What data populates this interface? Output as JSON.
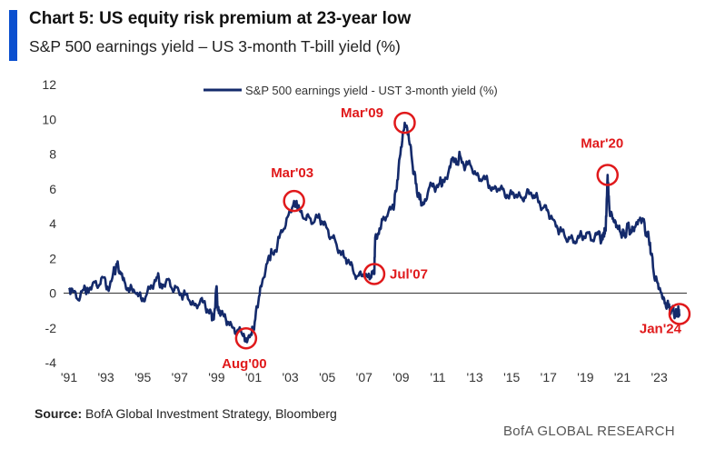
{
  "header": {
    "title": "Chart 5: US equity risk premium at 23-year low",
    "subtitle": "S&P 500 earnings yield – US 3-month T-bill yield (%)"
  },
  "footer": {
    "source_label": "Source:",
    "source_text": " BofA Global Investment Strategy, Bloomberg",
    "brand": "BofA GLOBAL RESEARCH"
  },
  "colors": {
    "line": "#142a6b",
    "annotation": "#e0191b",
    "accent": "#0a4fcf"
  },
  "chart_data": {
    "type": "line",
    "title": "",
    "xlabel": "",
    "ylabel": "",
    "x_ticks": [
      "'91",
      "'93",
      "'95",
      "'97",
      "'99",
      "'01",
      "'03",
      "'05",
      "'07",
      "'09",
      "'11",
      "'13",
      "'15",
      "'17",
      "'19",
      "'21",
      "'23"
    ],
    "x_tick_values": [
      1991,
      1993,
      1995,
      1997,
      1999,
      2001,
      2003,
      2005,
      2007,
      2009,
      2011,
      2013,
      2015,
      2017,
      2019,
      2021,
      2023
    ],
    "xlim": [
      1991,
      2024.3
    ],
    "ylim": [
      -4,
      12
    ],
    "y_ticks": [
      -4,
      -2,
      0,
      2,
      4,
      6,
      8,
      10,
      12
    ],
    "grid": false,
    "legend_position": "top-center",
    "series": [
      {
        "name": "S&P 500 earnings yield - UST 3-month yield (%)",
        "points": [
          [
            1991.0,
            0.3
          ],
          [
            1991.2,
            0.1
          ],
          [
            1991.5,
            -0.4
          ],
          [
            1991.8,
            0.2
          ],
          [
            1992.0,
            0.3
          ],
          [
            1992.3,
            0.6
          ],
          [
            1992.6,
            0.4
          ],
          [
            1992.9,
            0.9
          ],
          [
            1993.1,
            0.3
          ],
          [
            1993.4,
            1.2
          ],
          [
            1993.6,
            1.6
          ],
          [
            1993.8,
            1.1
          ],
          [
            1994.0,
            0.7
          ],
          [
            1994.3,
            0.2
          ],
          [
            1994.6,
            0.0
          ],
          [
            1994.9,
            -0.3
          ],
          [
            1995.2,
            -0.1
          ],
          [
            1995.5,
            0.4
          ],
          [
            1995.8,
            0.9
          ],
          [
            1996.0,
            0.5
          ],
          [
            1996.3,
            0.8
          ],
          [
            1996.6,
            0.2
          ],
          [
            1996.9,
            0.3
          ],
          [
            1997.2,
            -0.1
          ],
          [
            1997.5,
            -0.4
          ],
          [
            1997.8,
            -0.7
          ],
          [
            1998.1,
            -0.5
          ],
          [
            1998.4,
            -0.8
          ],
          [
            1998.7,
            -1.1
          ],
          [
            1998.85,
            -1.5
          ],
          [
            1999.0,
            0.4
          ],
          [
            1999.05,
            -0.8
          ],
          [
            1999.2,
            -1.3
          ],
          [
            1999.5,
            -1.5
          ],
          [
            1999.8,
            -1.8
          ],
          [
            2000.1,
            -2.2
          ],
          [
            2000.4,
            -2.4
          ],
          [
            2000.6,
            -2.6
          ],
          [
            2000.9,
            -2.4
          ],
          [
            2001.1,
            -1.5
          ],
          [
            2001.3,
            -0.2
          ],
          [
            2001.5,
            0.8
          ],
          [
            2001.8,
            2.0
          ],
          [
            2002.0,
            2.3
          ],
          [
            2002.3,
            2.8
          ],
          [
            2002.6,
            3.6
          ],
          [
            2002.9,
            4.5
          ],
          [
            2003.2,
            5.3
          ],
          [
            2003.4,
            4.8
          ],
          [
            2003.7,
            4.3
          ],
          [
            2004.0,
            4.4
          ],
          [
            2004.3,
            4.1
          ],
          [
            2004.6,
            4.3
          ],
          [
            2004.9,
            4.0
          ],
          [
            2005.2,
            3.2
          ],
          [
            2005.5,
            2.8
          ],
          [
            2005.8,
            2.3
          ],
          [
            2006.1,
            1.8
          ],
          [
            2006.4,
            1.3
          ],
          [
            2006.7,
            1.0
          ],
          [
            2007.0,
            1.0
          ],
          [
            2007.3,
            0.8
          ],
          [
            2007.55,
            1.1
          ],
          [
            2007.6,
            3.2
          ],
          [
            2007.8,
            3.4
          ],
          [
            2008.0,
            4.2
          ],
          [
            2008.3,
            4.6
          ],
          [
            2008.6,
            4.8
          ],
          [
            2008.8,
            6.5
          ],
          [
            2009.0,
            8.4
          ],
          [
            2009.2,
            9.8
          ],
          [
            2009.4,
            9.2
          ],
          [
            2009.6,
            7.6
          ],
          [
            2009.8,
            6.3
          ],
          [
            2010.0,
            5.4
          ],
          [
            2010.2,
            5.1
          ],
          [
            2010.5,
            6.0
          ],
          [
            2010.8,
            6.1
          ],
          [
            2011.1,
            6.3
          ],
          [
            2011.3,
            6.5
          ],
          [
            2011.6,
            7.1
          ],
          [
            2011.8,
            7.8
          ],
          [
            2012.0,
            7.4
          ],
          [
            2012.2,
            7.9
          ],
          [
            2012.5,
            7.3
          ],
          [
            2012.8,
            7.3
          ],
          [
            2013.1,
            6.8
          ],
          [
            2013.4,
            6.5
          ],
          [
            2013.7,
            6.4
          ],
          [
            2014.0,
            6.0
          ],
          [
            2014.3,
            6.0
          ],
          [
            2014.6,
            5.8
          ],
          [
            2014.9,
            5.7
          ],
          [
            2015.2,
            5.6
          ],
          [
            2015.5,
            5.5
          ],
          [
            2015.8,
            5.7
          ],
          [
            2016.1,
            5.6
          ],
          [
            2016.4,
            5.5
          ],
          [
            2016.7,
            4.9
          ],
          [
            2017.0,
            4.6
          ],
          [
            2017.3,
            4.2
          ],
          [
            2017.6,
            3.6
          ],
          [
            2017.9,
            3.2
          ],
          [
            2018.2,
            3.2
          ],
          [
            2018.5,
            2.9
          ],
          [
            2018.8,
            3.3
          ],
          [
            2019.1,
            3.5
          ],
          [
            2019.4,
            3.0
          ],
          [
            2019.7,
            3.4
          ],
          [
            2019.9,
            3.1
          ],
          [
            2020.0,
            3.5
          ],
          [
            2020.1,
            3.6
          ],
          [
            2020.2,
            6.8
          ],
          [
            2020.3,
            4.8
          ],
          [
            2020.5,
            4.3
          ],
          [
            2020.7,
            3.9
          ],
          [
            2020.9,
            3.5
          ],
          [
            2021.1,
            3.3
          ],
          [
            2021.3,
            3.8
          ],
          [
            2021.5,
            3.5
          ],
          [
            2021.7,
            3.8
          ],
          [
            2021.9,
            4.2
          ],
          [
            2022.1,
            4.3
          ],
          [
            2022.3,
            3.5
          ],
          [
            2022.5,
            2.9
          ],
          [
            2022.7,
            1.2
          ],
          [
            2022.9,
            0.6
          ],
          [
            2023.1,
            0.0
          ],
          [
            2023.3,
            -0.6
          ],
          [
            2023.5,
            -0.8
          ],
          [
            2023.7,
            -1.0
          ],
          [
            2023.9,
            -1.2
          ],
          [
            2024.0,
            -1.0
          ],
          [
            2024.1,
            -1.2
          ]
        ]
      }
    ],
    "annotations": [
      {
        "label": "Aug'00",
        "x": 2000.6,
        "y": -2.6
      },
      {
        "label": "Mar'03",
        "x": 2003.2,
        "y": 5.3
      },
      {
        "label": "Jul'07",
        "x": 2007.55,
        "y": 1.1
      },
      {
        "label": "Mar'09",
        "x": 2009.2,
        "y": 9.8
      },
      {
        "label": "Mar'20",
        "x": 2020.2,
        "y": 6.8
      },
      {
        "label": "Jan'24",
        "x": 2024.1,
        "y": -1.2
      }
    ]
  }
}
